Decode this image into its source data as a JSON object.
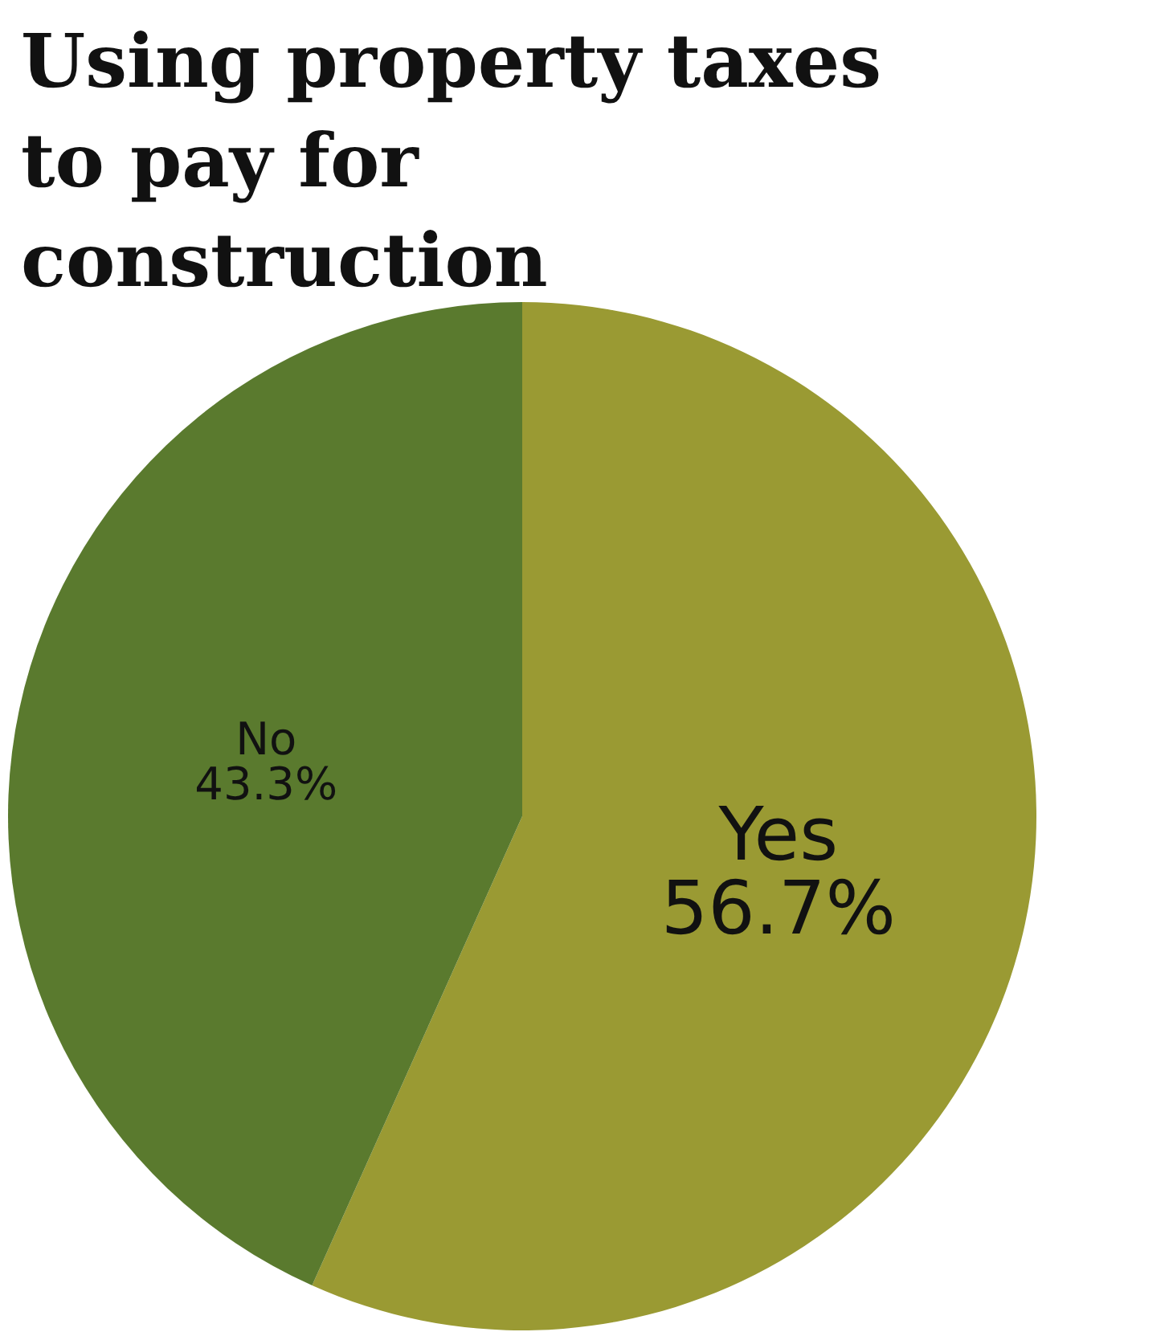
{
  "chart_data": {
    "type": "pie",
    "title": "Using property taxes to pay for construction",
    "categories": [
      "Yes",
      "No"
    ],
    "values": [
      56.7,
      43.3
    ],
    "value_labels": [
      "56.7%",
      "43.3%"
    ],
    "colors": [
      "#9a9a33",
      "#5a7a2e"
    ],
    "legend": false
  }
}
